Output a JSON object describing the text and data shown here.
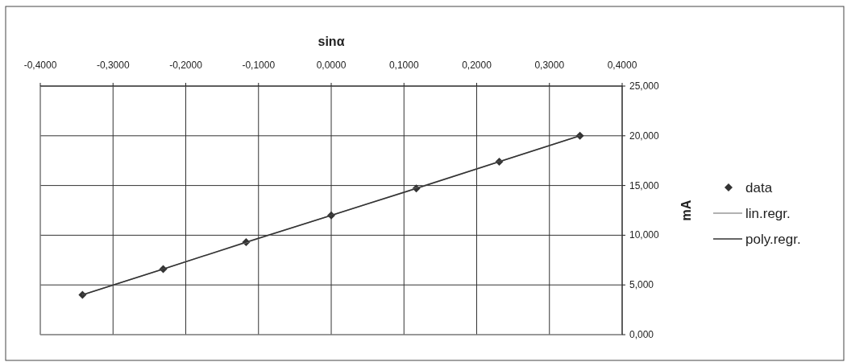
{
  "chart_data": {
    "type": "scatter",
    "xlabel": "sinα",
    "ylabel": "mA",
    "xlim": [
      -0.4,
      0.4
    ],
    "ylim": [
      0,
      25
    ],
    "xticks": [
      {
        "value": -0.4,
        "label": "-0,4000"
      },
      {
        "value": -0.3,
        "label": "-0,3000"
      },
      {
        "value": -0.2,
        "label": "-0,2000"
      },
      {
        "value": -0.1,
        "label": "-0,1000"
      },
      {
        "value": 0,
        "label": "0,0000"
      },
      {
        "value": 0.1,
        "label": "0,1000"
      },
      {
        "value": 0.2,
        "label": "0,2000"
      },
      {
        "value": 0.3,
        "label": "0,3000"
      },
      {
        "value": 0.4,
        "label": "0,4000"
      }
    ],
    "yticks": [
      {
        "value": 0,
        "label": "0,000"
      },
      {
        "value": 5,
        "label": "5,000"
      },
      {
        "value": 10,
        "label": "10,000"
      },
      {
        "value": 15,
        "label": "15,000"
      },
      {
        "value": 20,
        "label": "20,000"
      },
      {
        "value": 25,
        "label": "25,000"
      }
    ],
    "grid": true,
    "legend": "right",
    "series": [
      {
        "name": "data",
        "marker": "diamond",
        "color": "#333333",
        "x": [
          -0.342,
          -0.231,
          -0.117,
          0,
          0.117,
          0.231,
          0.342
        ],
        "values": [
          4.0,
          6.6,
          9.3,
          12.0,
          14.7,
          17.4,
          20.0
        ]
      },
      {
        "name": "lin.regr.",
        "type": "line",
        "color": "#999999",
        "x": [
          -0.342,
          0.342
        ],
        "values": [
          4.0,
          20.0
        ]
      },
      {
        "name": "poly.regr.",
        "type": "line",
        "color": "#333333",
        "x": [
          -0.342,
          -0.231,
          -0.117,
          0,
          0.117,
          0.231,
          0.342
        ],
        "values": [
          4.0,
          6.6,
          9.3,
          12.0,
          14.7,
          17.4,
          20.0
        ]
      }
    ]
  }
}
